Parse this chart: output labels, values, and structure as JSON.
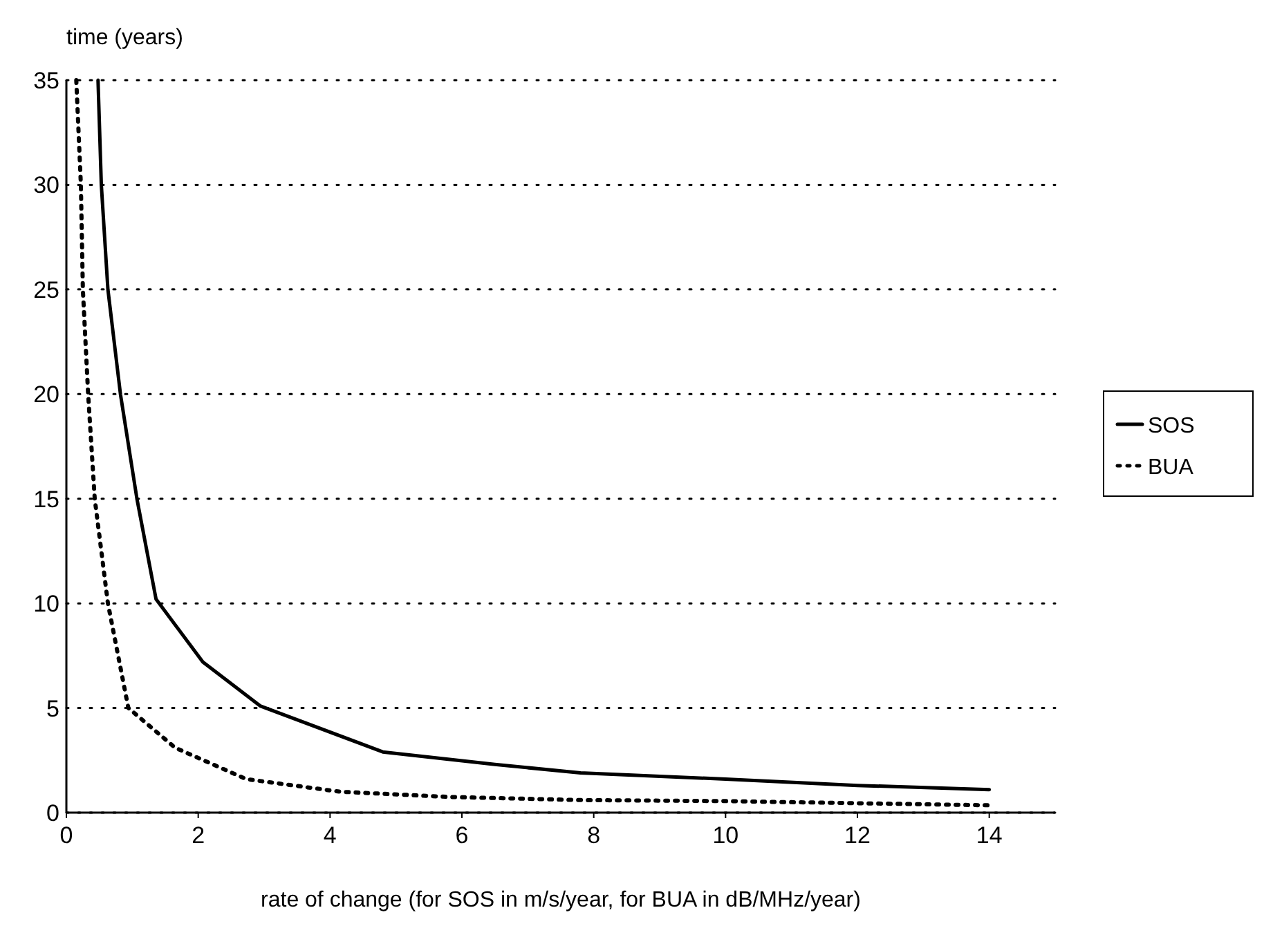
{
  "chart_data": {
    "type": "line",
    "ylabel": "time (years)",
    "xlabel": "rate of change (for SOS in m/s/year, for BUA in dB/MHz/year)",
    "xlim": [
      0,
      15
    ],
    "xticks": [
      0,
      2,
      4,
      6,
      8,
      10,
      12,
      14
    ],
    "ylim": [
      0,
      35
    ],
    "yticks": [
      0,
      5,
      10,
      15,
      20,
      25,
      30,
      35
    ],
    "grid": "y",
    "legend": "right",
    "marker": "none",
    "series": [
      {
        "name": "SOS",
        "color": "#000000",
        "line_style": "solid",
        "x": [
          0.48,
          0.53,
          0.63,
          0.82,
          1.07,
          1.36,
          2.07,
          2.94,
          4.8,
          6.5,
          7.8,
          10,
          12,
          14
        ],
        "values": [
          35,
          30,
          25,
          20,
          15,
          10.2,
          7.2,
          5.1,
          2.9,
          2.3,
          1.9,
          1.6,
          1.3,
          1.1
        ]
      },
      {
        "name": "BUA",
        "color": "#000000",
        "line_style": "dotted",
        "x": [
          0.15,
          0.22,
          0.25,
          0.33,
          0.43,
          0.63,
          0.94,
          1.65,
          2.73,
          4.15,
          5.8,
          7.8,
          10,
          14
        ],
        "values": [
          35,
          30,
          25,
          20,
          15,
          10,
          5,
          3.1,
          1.6,
          1,
          0.75,
          0.6,
          0.55,
          0.35
        ]
      }
    ]
  }
}
